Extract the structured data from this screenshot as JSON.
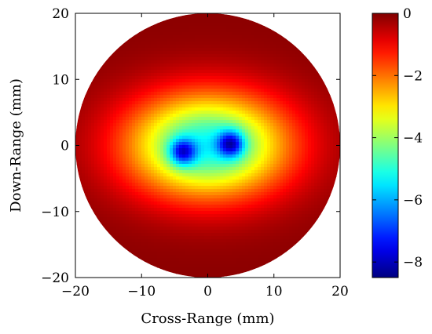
{
  "chart_data": {
    "type": "heatmap",
    "title": "",
    "xlabel": "Cross-Range (mm)",
    "ylabel": "Down-Range (mm)",
    "xlim": [
      -20,
      20
    ],
    "ylim": [
      -20,
      20
    ],
    "xticks": [
      -20,
      -10,
      0,
      10,
      20
    ],
    "yticks": [
      -20,
      -10,
      0,
      10,
      20
    ],
    "xtick_labels": [
      "−20",
      "−10",
      "0",
      "10",
      "20"
    ],
    "ytick_labels": [
      "−20",
      "−10",
      "0",
      "10",
      "20"
    ],
    "domain": {
      "shape": "circle",
      "center": [
        0,
        0
      ],
      "radius": 20
    },
    "grid": false,
    "colormap": "jet",
    "colorbar": {
      "range": [
        -8.5,
        0
      ],
      "ticks": [
        0,
        -2,
        -4,
        -6,
        -8
      ],
      "tick_labels": [
        "0",
        "−2",
        "−4",
        "−6",
        "−8"
      ]
    },
    "features": [
      {
        "x": 3.5,
        "y": 0.2,
        "peak_value": -8.4
      },
      {
        "x": -3.8,
        "y": -1.0,
        "peak_value": -8.2
      }
    ],
    "background_value": -0.1
  }
}
